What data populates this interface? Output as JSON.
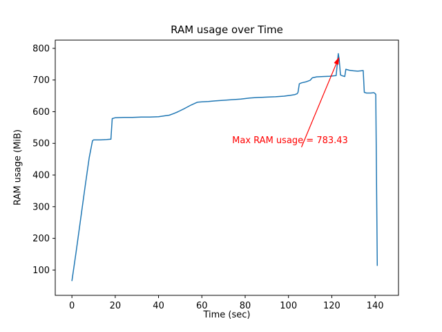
{
  "chart_data": {
    "type": "line",
    "title": "RAM usage over Time",
    "xlabel": "Time (sec)",
    "ylabel": "RAM usage (MiB)",
    "xlim": [
      -7.7,
      150.8
    ],
    "ylim": [
      20,
      826
    ],
    "xticks": [
      0,
      20,
      40,
      60,
      80,
      100,
      120,
      140
    ],
    "yticks": [
      100,
      200,
      300,
      400,
      500,
      600,
      700,
      800
    ],
    "grid": false,
    "legend": "none",
    "max_value": 783.43,
    "series": [
      {
        "name": "RAM usage",
        "color": "#1f77b4",
        "points": [
          [
            0,
            65
          ],
          [
            2,
            160
          ],
          [
            4,
            260
          ],
          [
            6,
            360
          ],
          [
            8,
            455
          ],
          [
            9.5,
            508
          ],
          [
            10,
            511
          ],
          [
            13,
            511
          ],
          [
            16,
            512
          ],
          [
            18,
            513
          ],
          [
            18.6,
            578
          ],
          [
            20,
            581
          ],
          [
            24,
            582
          ],
          [
            28,
            582
          ],
          [
            32,
            583
          ],
          [
            36,
            583
          ],
          [
            40,
            584
          ],
          [
            43,
            587
          ],
          [
            45,
            589
          ],
          [
            47,
            594
          ],
          [
            49,
            600
          ],
          [
            52,
            610
          ],
          [
            55,
            621
          ],
          [
            57,
            627
          ],
          [
            58,
            630
          ],
          [
            60,
            631
          ],
          [
            63,
            632
          ],
          [
            66,
            634
          ],
          [
            70,
            636
          ],
          [
            74,
            638
          ],
          [
            78,
            640
          ],
          [
            82,
            643
          ],
          [
            86,
            645
          ],
          [
            90,
            646
          ],
          [
            94,
            647
          ],
          [
            98,
            649
          ],
          [
            101,
            652
          ],
          [
            103,
            654
          ],
          [
            104,
            657
          ],
          [
            104.4,
            661
          ],
          [
            105,
            688
          ],
          [
            106,
            691
          ],
          [
            108,
            694
          ],
          [
            110,
            699
          ],
          [
            111,
            707
          ],
          [
            113,
            710
          ],
          [
            116,
            711
          ],
          [
            119,
            712
          ],
          [
            122,
            714
          ],
          [
            122.6,
            755
          ],
          [
            123,
            783.43
          ],
          [
            123.4,
            766
          ],
          [
            124,
            716
          ],
          [
            125,
            713
          ],
          [
            126,
            711
          ],
          [
            126.5,
            734
          ],
          [
            128,
            731
          ],
          [
            130,
            729
          ],
          [
            132,
            728
          ],
          [
            133.5,
            729
          ],
          [
            134.5,
            730
          ],
          [
            135,
            661
          ],
          [
            136,
            659
          ],
          [
            138,
            659
          ],
          [
            139.5,
            660
          ],
          [
            140.3,
            655
          ],
          [
            141,
            113
          ]
        ]
      }
    ],
    "annotation": {
      "label": "Max RAM usage = 783.43",
      "color": "#ff0000",
      "text_at": [
        74,
        500
      ],
      "arrow_from": [
        106,
        488
      ],
      "arrow_to": [
        123.2,
        770
      ]
    }
  }
}
